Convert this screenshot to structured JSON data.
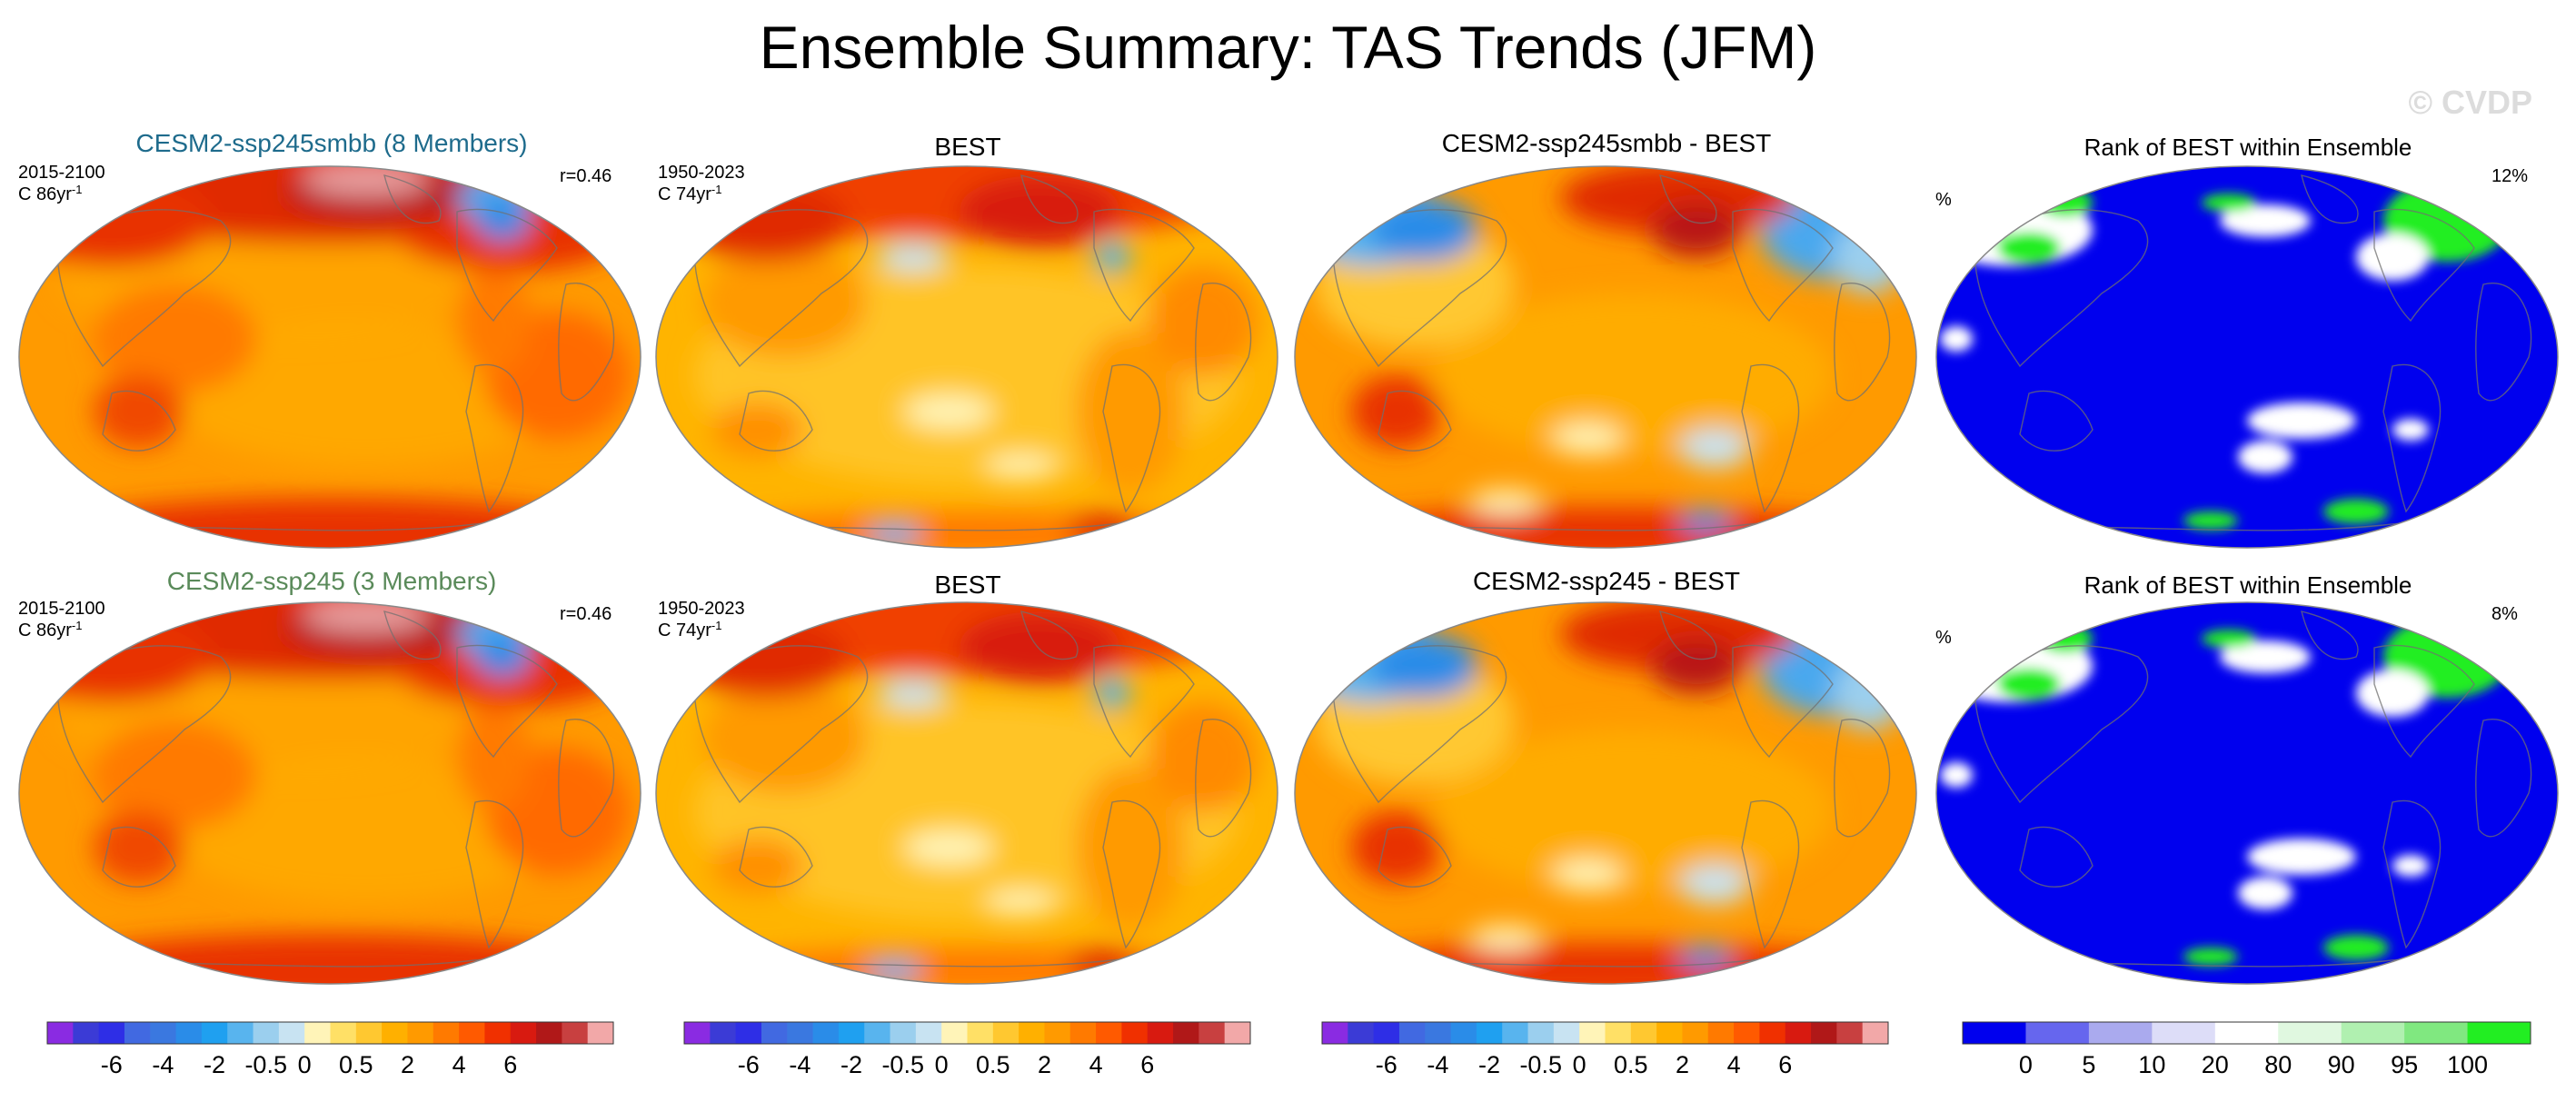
{
  "title": "Ensemble Summary: TAS Trends (JFM)",
  "watermark": "© CVDP",
  "colors": {
    "title_smbb": "#1e6b8c",
    "title_ssp245": "#5a8a5a"
  },
  "rows": [
    {
      "ens_title": "CESM2-ssp245smbb (8 Members)",
      "ens_period": "2015-2100",
      "ens_units": "C 86yr",
      "ens_units_sup": "-1",
      "ens_r": "r=0.46",
      "obs_title": "BEST",
      "obs_period": "1950-2023",
      "obs_units": "C 74yr",
      "obs_units_sup": "-1",
      "diff_title": "CESM2-ssp245smbb - BEST",
      "rank_title": "Rank of BEST within Ensemble",
      "rank_pct": "12%",
      "rank_unit": "%"
    },
    {
      "ens_title": "CESM2-ssp245 (3 Members)",
      "ens_period": "2015-2100",
      "ens_units": "C 86yr",
      "ens_units_sup": "-1",
      "ens_r": "r=0.46",
      "obs_title": "BEST",
      "obs_period": "1950-2023",
      "obs_units": "C 74yr",
      "obs_units_sup": "-1",
      "diff_title": "CESM2-ssp245 - BEST",
      "rank_title": "Rank of BEST within Ensemble",
      "rank_pct": "8%",
      "rank_unit": "%"
    }
  ],
  "trend_colorbar": {
    "colors": [
      "#8a2be2",
      "#3b3bd6",
      "#2e2ee6",
      "#4169e1",
      "#3a78e0",
      "#2a8ce8",
      "#1fa0f0",
      "#58b4ee",
      "#9bcfee",
      "#c8e3f2",
      "#fff4b8",
      "#ffe066",
      "#ffc830",
      "#ffb000",
      "#ff9a00",
      "#ff7a00",
      "#ff5a00",
      "#f03000",
      "#d81a10",
      "#b01818",
      "#c84040",
      "#f2a8a8"
    ],
    "labels": [
      "-6",
      "-4",
      "-2",
      "-0.5",
      "0",
      "0.5",
      "2",
      "4",
      "6"
    ]
  },
  "rank_colorbar": {
    "colors": [
      "#0000ee",
      "#6666ee",
      "#aaaaee",
      "#ddddf8",
      "#ffffff",
      "#e0f8e0",
      "#b0f0b0",
      "#80e880",
      "#22ee22"
    ],
    "labels": [
      "0",
      "5",
      "10",
      "20",
      "80",
      "90",
      "95",
      "100"
    ]
  }
}
